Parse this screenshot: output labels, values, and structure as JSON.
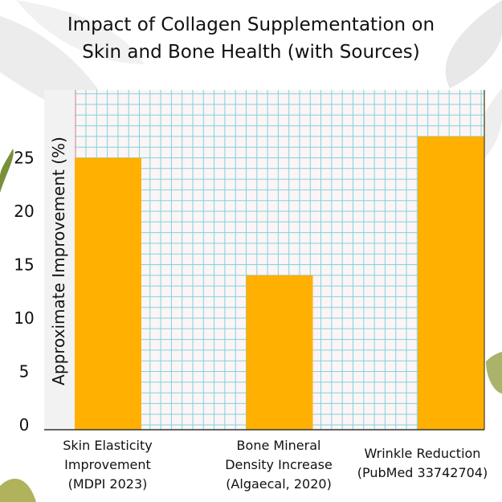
{
  "chart_data": {
    "type": "bar",
    "title": "Impact of Collagen Supplementation on Skin and Bone Health (with Sources)",
    "title_lines": [
      "Impact of Collagen Supplementation on",
      "Skin and Bone Health (with Sources)"
    ],
    "xlabel": "",
    "ylabel": "Approximate Improvement (%)",
    "categories": [
      [
        "Skin Elasticity",
        "Improvement",
        "(MDPI 2023)"
      ],
      [
        "Bone Mineral",
        "Density Increase",
        "(Algaecal, 2020)"
      ],
      [
        "Wrinkle Reduction",
        "(PubMed 33742704)"
      ]
    ],
    "category_names": [
      "Skin Elasticity Improvement (MDPI 2023)",
      "Bone Mineral Density Increase (Algaecal, 2020)",
      "Wrinkle Reduction (PubMed 33742704)"
    ],
    "values": [
      25,
      14,
      27
    ],
    "yticks": [
      0,
      5,
      10,
      15,
      20,
      25
    ],
    "ylim": [
      0,
      31
    ],
    "grid": true,
    "legend": "none",
    "colors": {
      "bar": "#FFB000",
      "grid": "#7FD3DA",
      "plot_bg": "#FBF5F6",
      "margin_line": "#D9A3AE"
    }
  }
}
